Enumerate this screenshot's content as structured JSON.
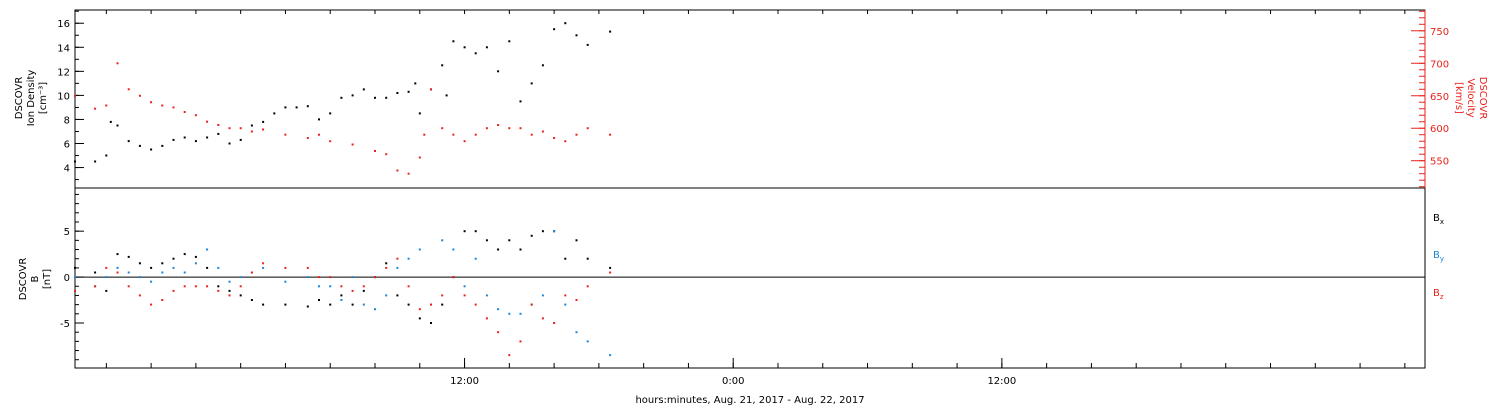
{
  "chart_data": [
    {
      "type": "scatter",
      "panel": "top",
      "title": "",
      "xlabel": "",
      "ylabel_left_lines": [
        "DSCOVR",
        "Ion  Density",
        "[cm⁻³]"
      ],
      "ylabel_right_lines": [
        "DSCOVR",
        "Velocity",
        "[km/s]"
      ],
      "x_range_hours": [
        -17.4,
        42.9
      ],
      "ylim_left": [
        2.3,
        17.1
      ],
      "ylim_right": [
        508,
        782
      ],
      "yticks_left": [
        "4",
        "6",
        "8",
        "10",
        "12",
        "14",
        "16"
      ],
      "yticks_left_values": [
        4,
        6,
        8,
        10,
        12,
        14,
        16
      ],
      "yticks_right": [
        "550",
        "600",
        "650",
        "700",
        "750"
      ],
      "yticks_right_values": [
        550,
        600,
        650,
        700,
        750
      ],
      "grid": false,
      "series": [
        {
          "axis": "left",
          "color": "#000000",
          "x": [
            -17.4,
            -16.5,
            -16.0,
            -15.8,
            -15.5,
            -15.0,
            -14.5,
            -14.0,
            -13.5,
            -13.0,
            -12.5,
            -12.0,
            -11.5,
            -11.0,
            -10.5,
            -10.0,
            -9.5,
            -9.0,
            -8.5,
            -8.0,
            -7.5,
            -7.0,
            -6.5,
            -6.0,
            -5.5,
            -5.0,
            -4.5,
            -4.0,
            -3.5,
            -3.0,
            -2.5,
            -2.2,
            -2.0,
            -1.5,
            -1.0,
            -0.8,
            -0.5,
            0.0,
            0.5,
            1.0,
            1.5,
            2.0,
            2.5,
            3.0,
            3.5,
            4.0,
            4.5,
            5.0,
            5.5,
            6.5
          ],
          "y": [
            4.5,
            4.5,
            5.0,
            7.8,
            7.5,
            6.2,
            5.8,
            5.5,
            5.8,
            6.3,
            6.5,
            6.2,
            6.5,
            6.8,
            6.0,
            6.3,
            7.5,
            7.8,
            8.5,
            9.0,
            9.0,
            9.1,
            8.0,
            8.5,
            9.8,
            10.0,
            10.5,
            9.8,
            9.8,
            10.2,
            10.3,
            11.0,
            8.5,
            10.5,
            12.5,
            10.0,
            14.5,
            14.0,
            13.5,
            14.0,
            12.0,
            14.5,
            9.5,
            11.0,
            12.5,
            15.5,
            16.0,
            15.0,
            14.2,
            15.3
          ]
        },
        {
          "axis": "right",
          "color": "#e8231d",
          "x": [
            -17.4,
            -16.5,
            -16.0,
            -15.5,
            -15.0,
            -14.5,
            -14.0,
            -13.5,
            -13.0,
            -12.5,
            -12.0,
            -11.5,
            -11.0,
            -10.5,
            -10.0,
            -9.5,
            -9.0,
            -8.0,
            -7.0,
            -6.5,
            -6.0,
            -5.0,
            -4.0,
            -3.5,
            -3.0,
            -2.5,
            -2.0,
            -1.8,
            -1.5,
            -1.0,
            -0.5,
            0.0,
            0.5,
            1.0,
            1.5,
            2.0,
            2.5,
            3.0,
            3.5,
            4.0,
            4.5,
            5.0,
            5.5,
            6.5
          ],
          "y": [
            650,
            630,
            635,
            700,
            660,
            650,
            640,
            635,
            632,
            625,
            620,
            610,
            605,
            600,
            600,
            595,
            598,
            590,
            585,
            590,
            580,
            575,
            565,
            560,
            535,
            530,
            555,
            590,
            660,
            600,
            590,
            580,
            590,
            600,
            605,
            600,
            600,
            590,
            595,
            585,
            580,
            590,
            600,
            590
          ]
        }
      ]
    },
    {
      "type": "scatter",
      "panel": "bottom",
      "title": "",
      "xlabel": "hours:minutes, Aug. 21, 2017 - Aug. 22, 2017",
      "ylabel_lines": [
        "DSCOVR",
        "B",
        "[nT]"
      ],
      "ylim": [
        -9.9,
        9.7
      ],
      "yticks": [
        "-5",
        "0",
        "5"
      ],
      "yticks_values": [
        -5,
        0,
        5
      ],
      "zero_line": true,
      "grid": false,
      "x_range_hours": [
        -17.4,
        42.9
      ],
      "xticks": [
        "12:00",
        "0:00",
        "12:00"
      ],
      "xticks_values": [
        0,
        12,
        24
      ],
      "legend_position": "right",
      "series": [
        {
          "name_main": "B",
          "name_sub": "x",
          "color": "#000000",
          "x": [
            -17.4,
            -16.5,
            -16.0,
            -15.5,
            -15.0,
            -14.5,
            -14.0,
            -13.5,
            -13.0,
            -12.5,
            -12.0,
            -11.5,
            -11.0,
            -10.5,
            -10.0,
            -9.5,
            -9.0,
            -8.0,
            -7.0,
            -6.5,
            -6.0,
            -5.5,
            -5.0,
            -4.5,
            -4.0,
            -3.5,
            -3.0,
            -2.5,
            -2.0,
            -1.5,
            -1.0,
            -0.5,
            0.0,
            0.5,
            1.0,
            1.5,
            2.0,
            2.5,
            3.0,
            3.5,
            4.0,
            4.5,
            5.0,
            5.5,
            6.5
          ],
          "y": [
            1,
            0.5,
            -1.5,
            2.5,
            2.2,
            1.5,
            1,
            1.5,
            2,
            2.5,
            2.2,
            1,
            -1,
            -1.5,
            -2,
            -2.5,
            -3,
            -3,
            -3.2,
            -2.5,
            -3,
            -2,
            -3,
            -1.5,
            0,
            1.5,
            -2,
            -3,
            -4.5,
            -5,
            -3,
            0,
            5,
            5,
            4,
            3,
            4,
            3,
            4.5,
            5,
            5,
            2,
            4,
            2,
            1
          ]
        },
        {
          "name_main": "B",
          "name_sub": "y",
          "color": "#1f86d6",
          "x": [
            -17.4,
            -16.5,
            -16.0,
            -15.5,
            -15.0,
            -14.5,
            -14.0,
            -13.5,
            -13.0,
            -12.5,
            -12.0,
            -11.5,
            -11.0,
            -10.5,
            -10.0,
            -9.5,
            -9.0,
            -8.0,
            -7.0,
            -6.5,
            -6.0,
            -5.5,
            -5.0,
            -4.5,
            -4.0,
            -3.5,
            -3.0,
            -2.5,
            -2.0,
            -1.5,
            -1.0,
            -0.5,
            0.0,
            0.5,
            1.0,
            1.5,
            2.0,
            2.5,
            3.0,
            3.5,
            4.0,
            4.5,
            5.0,
            5.5,
            6.5
          ],
          "y": [
            0,
            -1,
            0,
            1,
            0.5,
            0,
            -0.5,
            0.5,
            1,
            0.5,
            1.5,
            3,
            1,
            -0.5,
            0,
            0.5,
            1,
            -0.5,
            0,
            -1,
            -1,
            -2.5,
            0,
            -3,
            -3.5,
            -2,
            1,
            2,
            3,
            -3,
            4,
            3,
            -1,
            2,
            -2,
            -3.5,
            -4,
            -4,
            -3,
            -2,
            5,
            -3,
            -6,
            -7,
            -8.5
          ]
        },
        {
          "name_main": "B",
          "name_sub": "z",
          "color": "#e8231d",
          "x": [
            -17.4,
            -16.5,
            -16.0,
            -15.5,
            -15.0,
            -14.5,
            -14.0,
            -13.5,
            -13.0,
            -12.5,
            -12.0,
            -11.5,
            -11.0,
            -10.5,
            -10.0,
            -9.5,
            -9.0,
            -8.0,
            -7.0,
            -6.5,
            -6.0,
            -5.5,
            -5.0,
            -4.5,
            -4.0,
            -3.5,
            -3.0,
            -2.5,
            -2.0,
            -1.5,
            -1.0,
            -0.5,
            0.0,
            0.5,
            1.0,
            1.5,
            2.0,
            2.5,
            3.0,
            3.5,
            4.0,
            4.5,
            5.0,
            5.5,
            6.5
          ],
          "y": [
            -1.5,
            -1,
            1,
            0.5,
            -1,
            -2,
            -3,
            -2.5,
            -1.5,
            -1,
            -1,
            -1,
            -1.5,
            -2,
            -1,
            0.5,
            1.5,
            1,
            1,
            0,
            0,
            -1,
            -1.5,
            -1,
            0,
            1,
            2,
            -1,
            -3.5,
            -3,
            -2,
            0,
            -2,
            -3,
            -4.5,
            -6,
            -8.5,
            -7,
            -3,
            -4.5,
            -5,
            -2,
            -2.5,
            -1,
            0.5
          ]
        }
      ]
    }
  ]
}
